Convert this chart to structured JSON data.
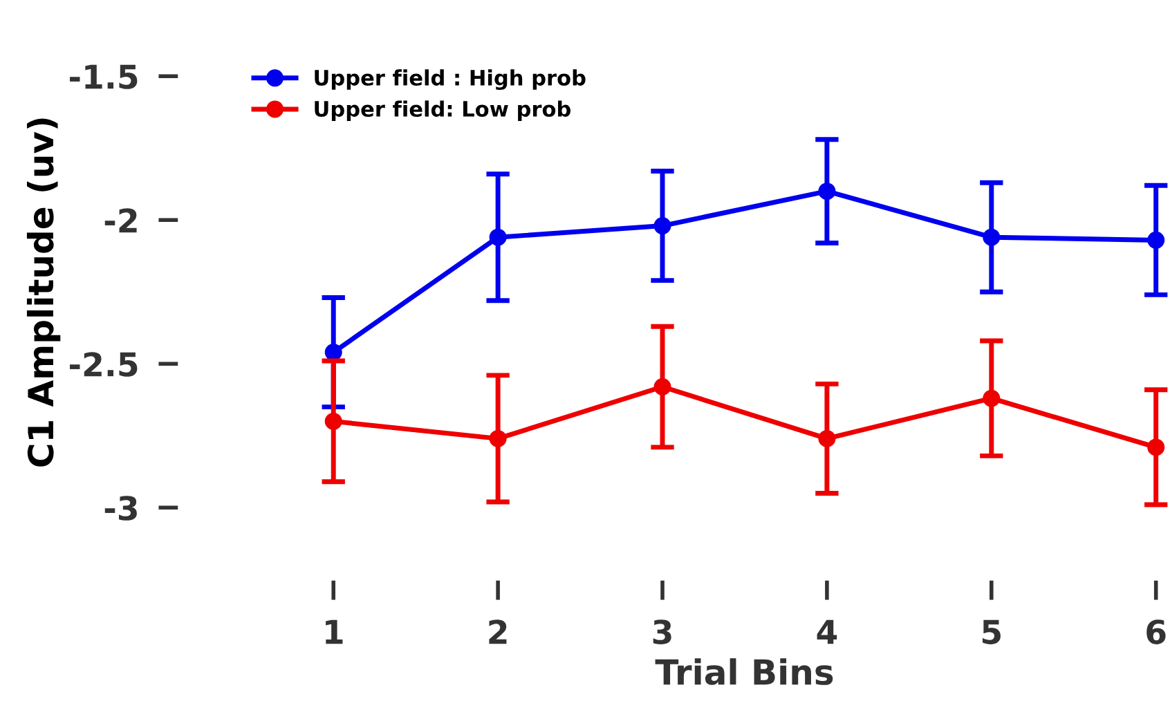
{
  "chart_data": {
    "type": "line",
    "xlabel": "Trial Bins",
    "ylabel": "C1 Amplitude (uv)",
    "x": [
      1,
      2,
      3,
      4,
      5,
      6
    ],
    "series": [
      {
        "name": "Upper field : High prob",
        "color": "#0000ee",
        "values": [
          -2.46,
          -2.06,
          -2.02,
          -1.9,
          -2.06,
          -2.07
        ],
        "errors": [
          0.19,
          0.22,
          0.19,
          0.18,
          0.19,
          0.19
        ]
      },
      {
        "name": "Upper field: Low prob",
        "color": "#ee0000",
        "values": [
          -2.7,
          -2.76,
          -2.58,
          -2.76,
          -2.62,
          -2.79
        ],
        "errors": [
          0.21,
          0.22,
          0.21,
          0.19,
          0.2,
          0.2
        ]
      }
    ],
    "xlim": [
      1,
      6
    ],
    "xticks": [
      1,
      2,
      3,
      4,
      5,
      6
    ],
    "ylim": [
      -3,
      -1.5
    ],
    "yticks": [
      -3,
      -2.5,
      -2,
      -1.5
    ],
    "grid": false,
    "legend": "top left",
    "marker": "circle",
    "line_style": "solid"
  }
}
